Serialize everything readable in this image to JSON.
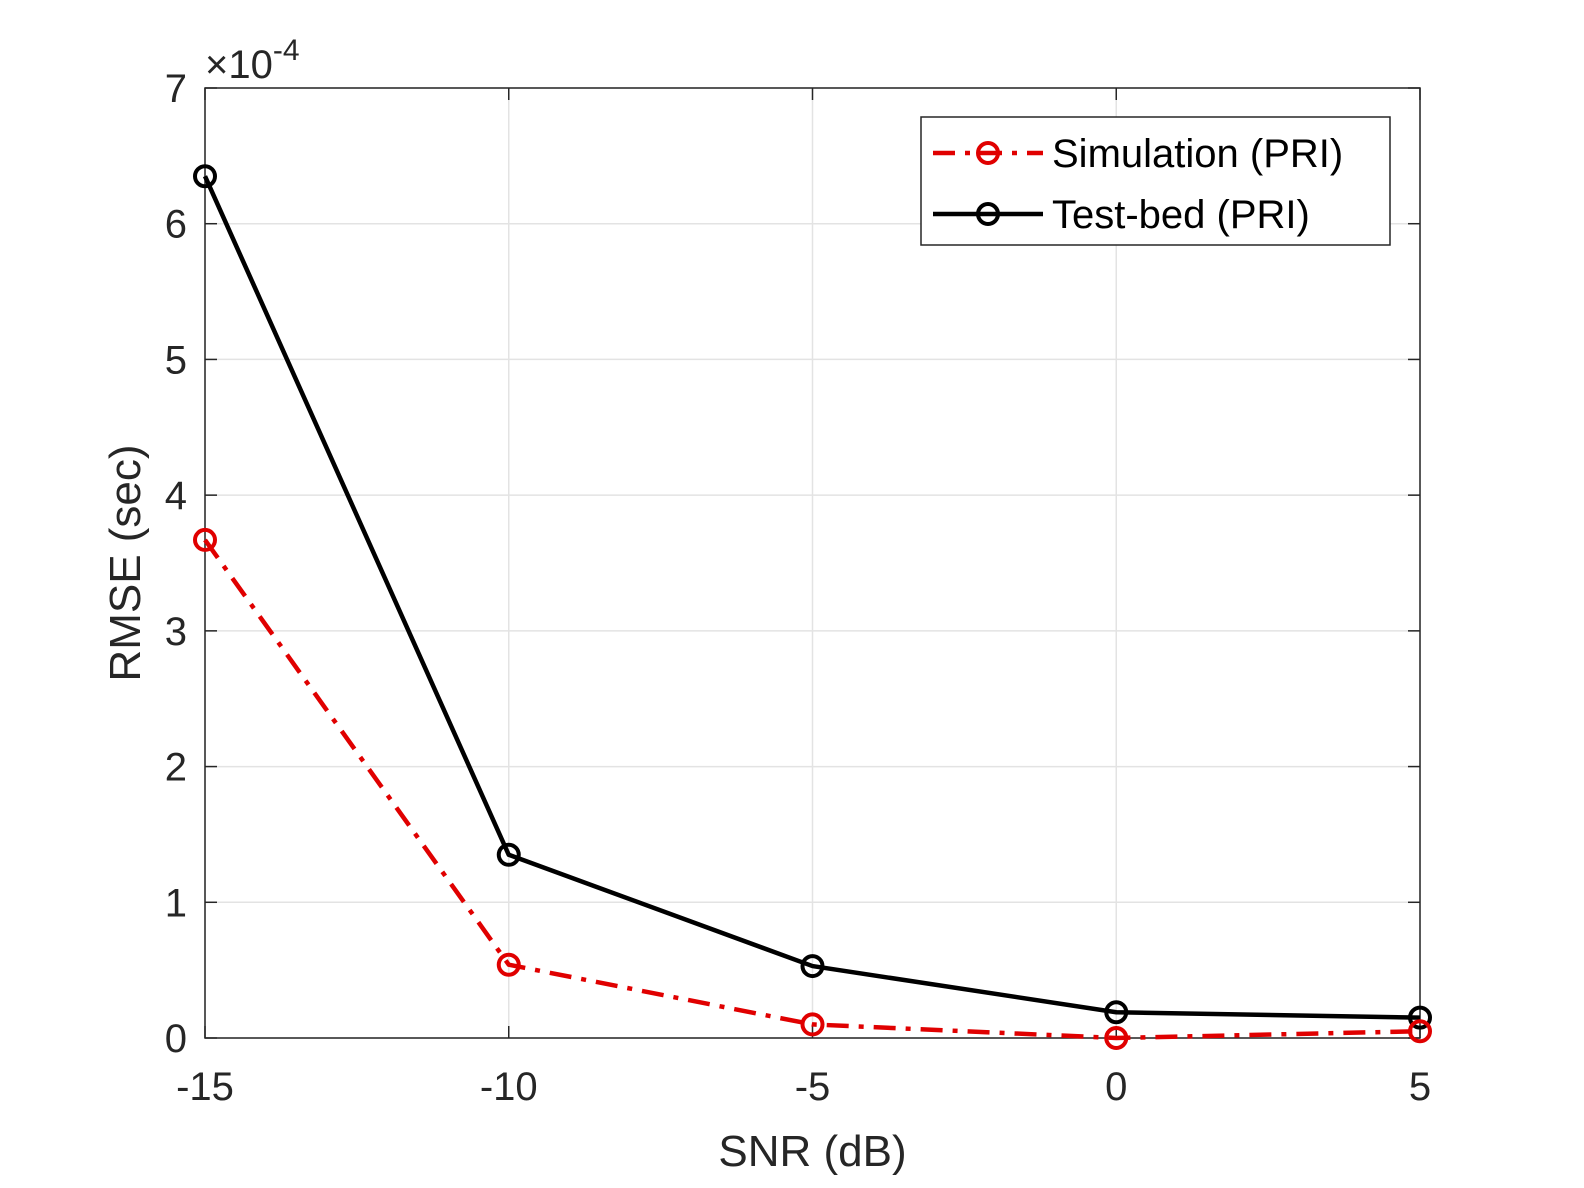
{
  "chart_data": {
    "type": "line",
    "xlabel": "SNR (dB)",
    "ylabel": "RMSE (sec)",
    "y_exponent_label": "×10",
    "y_exponent_power": "-4",
    "x": [
      -15,
      -10,
      -5,
      0,
      5
    ],
    "xticks": [
      -15,
      -10,
      -5,
      0,
      5
    ],
    "xtick_labels": [
      "-15",
      "-10",
      "-5",
      "0",
      "5"
    ],
    "yticks": [
      0,
      1,
      2,
      3,
      4,
      5,
      6,
      7
    ],
    "ytick_labels": [
      "0",
      "1",
      "2",
      "3",
      "4",
      "5",
      "6",
      "7"
    ],
    "xlim": [
      -15,
      5
    ],
    "ylim": [
      0,
      7
    ],
    "y_scale_factor": 0.0001,
    "grid": true,
    "legend_position": "top-right",
    "series": [
      {
        "name": "Simulation (PRI)",
        "values": [
          3.67,
          0.54,
          0.1,
          0.0,
          0.05
        ],
        "color": "#e00000",
        "line_style": "dash-dot",
        "marker": "circle"
      },
      {
        "name": "Test-bed (PRI)",
        "values": [
          6.35,
          1.35,
          0.53,
          0.19,
          0.15
        ],
        "color": "#000000",
        "line_style": "solid",
        "marker": "circle"
      }
    ]
  }
}
